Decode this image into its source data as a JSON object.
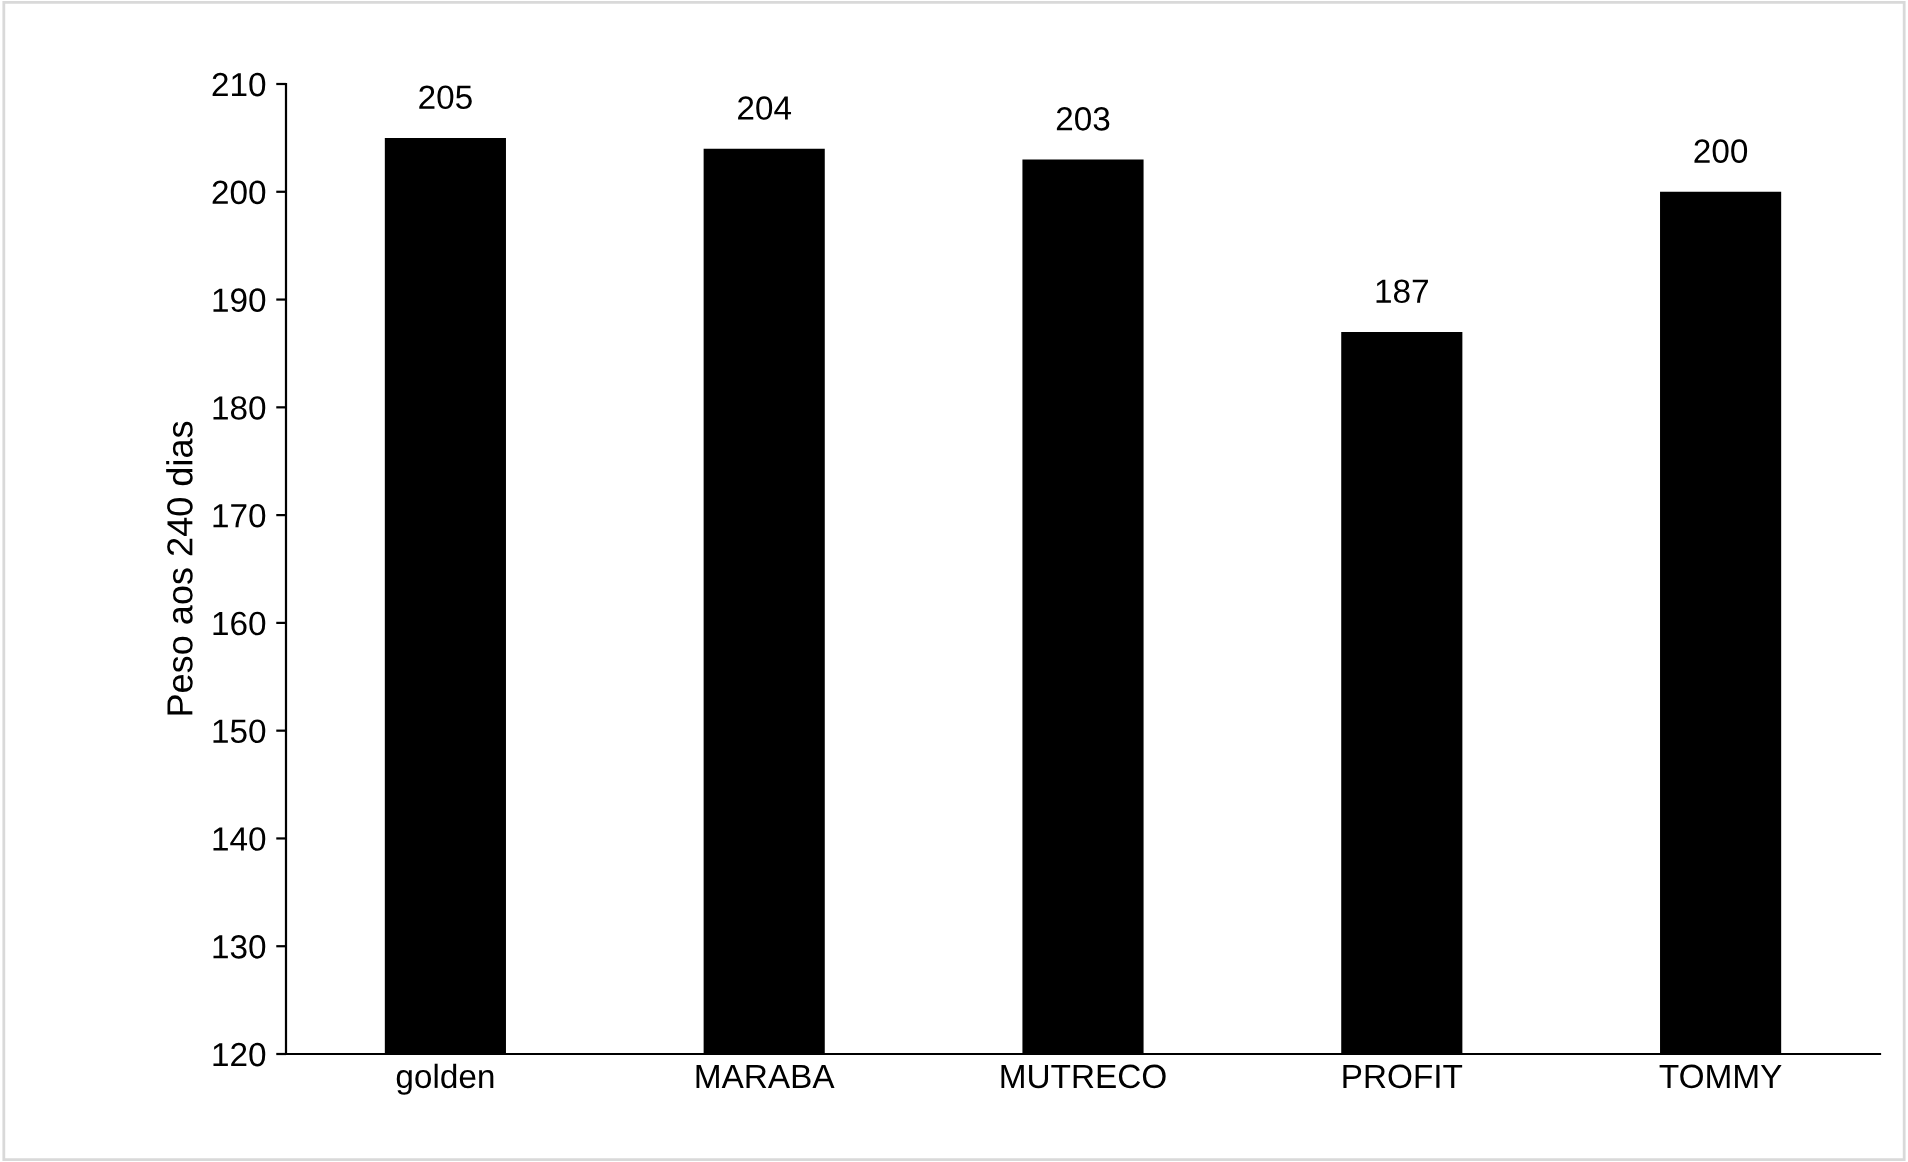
{
  "chart_data": {
    "type": "bar",
    "ylabel": "Peso aos 240 dias",
    "categories": [
      "golden",
      "MARABA",
      "MUTRECO",
      "PROFIT",
      "TOMMY"
    ],
    "values": [
      205,
      204,
      203,
      187,
      200
    ],
    "data_labels": true,
    "color": "#000000",
    "ylim": [
      120,
      210
    ],
    "yticks": [
      120,
      130,
      140,
      150,
      160,
      170,
      180,
      190,
      200,
      210
    ],
    "grid": false,
    "legend": false
  }
}
